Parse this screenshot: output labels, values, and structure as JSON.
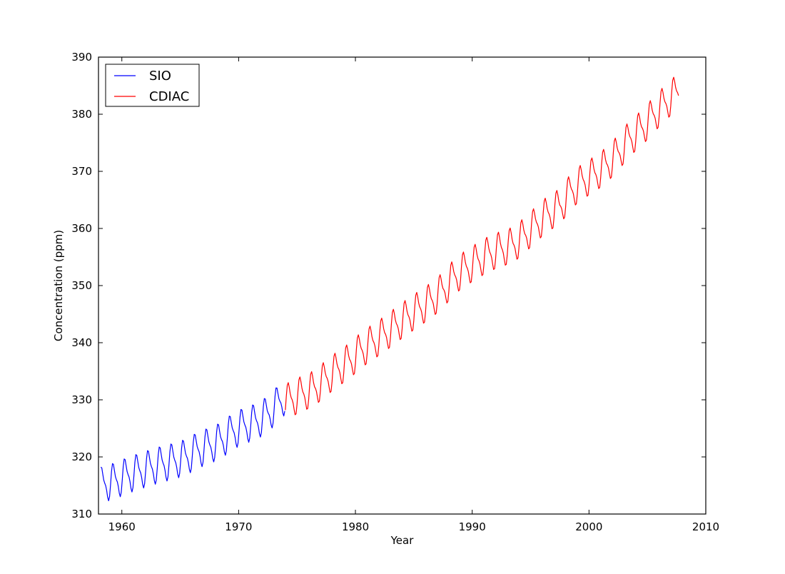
{
  "chart_data": {
    "type": "line",
    "title": "",
    "xlabel": "Year",
    "ylabel": "Concentration (ppm)",
    "xlim": [
      1958,
      2010
    ],
    "ylim": [
      310,
      390
    ],
    "xticks": [
      1960,
      1970,
      1980,
      1990,
      2000,
      2010
    ],
    "yticks": [
      310,
      320,
      330,
      340,
      350,
      360,
      370,
      380,
      390
    ],
    "grid": false,
    "legend_position": "top-left",
    "seasonal_amplitude_ppm": 3.2,
    "series": [
      {
        "name": "SIO",
        "color": "#0000ff",
        "x_range": [
          1958.2,
          1974.0
        ],
        "annual_x": [
          1958.5,
          1959.5,
          1960.5,
          1961.5,
          1962.5,
          1963.5,
          1964.5,
          1965.5,
          1966.5,
          1967.5,
          1968.5,
          1969.5,
          1970.5,
          1971.5,
          1972.5,
          1973.5
        ],
        "annual_mean": [
          315.3,
          315.9,
          316.8,
          317.5,
          318.2,
          318.8,
          319.3,
          320.0,
          321.2,
          322.0,
          322.9,
          324.5,
          325.5,
          326.2,
          327.5,
          329.6
        ]
      },
      {
        "name": "CDIAC",
        "color": "#ff0000",
        "x_range": [
          1974.0,
          2007.7
        ],
        "annual_x": [
          1974.5,
          1975.5,
          1976.5,
          1977.5,
          1978.5,
          1979.5,
          1980.5,
          1981.5,
          1982.5,
          1983.5,
          1984.5,
          1985.5,
          1986.5,
          1987.5,
          1988.5,
          1989.5,
          1990.5,
          1991.5,
          1992.5,
          1993.5,
          1994.5,
          1995.5,
          1996.5,
          1997.5,
          1998.5,
          1999.5,
          2000.5,
          2001.5,
          2002.5,
          2003.5,
          2004.5,
          2005.5,
          2006.5,
          2007.5
        ],
        "annual_mean": [
          330.1,
          331.1,
          332.0,
          333.8,
          335.4,
          336.8,
          338.7,
          340.1,
          341.5,
          343.1,
          344.6,
          346.0,
          347.4,
          349.2,
          351.6,
          353.1,
          354.4,
          355.6,
          356.4,
          357.1,
          358.8,
          360.8,
          362.6,
          363.8,
          366.6,
          368.3,
          369.5,
          371.1,
          373.2,
          375.8,
          377.5,
          379.8,
          381.9,
          383.8
        ]
      }
    ]
  }
}
